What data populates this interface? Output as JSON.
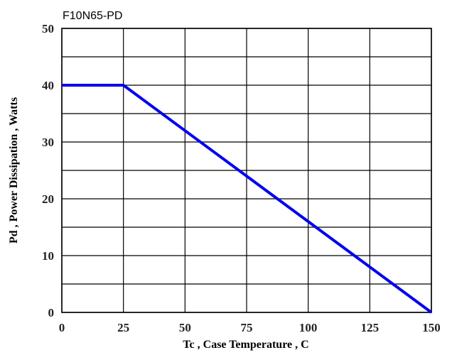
{
  "chart_data": {
    "type": "line",
    "title": "F10N65-PD",
    "xlabel": "Tc , Case Temperature , C",
    "ylabel": "Pd , Power Dissipation , Watts",
    "xlim": [
      0,
      150
    ],
    "ylim": [
      0,
      50
    ],
    "x_ticks": [
      "0",
      "25",
      "50",
      "75",
      "100",
      "125",
      "150"
    ],
    "y_ticks": [
      "0",
      "10",
      "20",
      "30",
      "40",
      "50"
    ],
    "grid": true,
    "x_grid_step": 25,
    "y_grid_step": 5,
    "series": [
      {
        "x": [
          0,
          25,
          150
        ],
        "y": [
          40,
          40,
          0
        ]
      }
    ],
    "colors": {
      "line": "#0000ee",
      "grid": "#000000",
      "background": "#ffffff"
    }
  }
}
